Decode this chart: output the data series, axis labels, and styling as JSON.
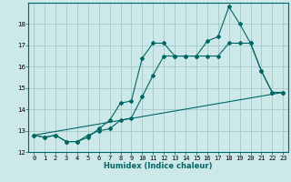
{
  "xlabel": "Humidex (Indice chaleur)",
  "bg_color": "#cce8e8",
  "line_color": "#006666",
  "grid_color": "#aacccc",
  "xlim": [
    -0.5,
    23.5
  ],
  "ylim": [
    12,
    19
  ],
  "yticks": [
    12,
    13,
    14,
    15,
    16,
    17,
    18
  ],
  "xtick_count": 24,
  "series1_x": [
    0,
    1,
    2,
    3,
    4,
    5,
    6,
    7,
    8,
    9,
    10,
    11,
    12,
    13,
    14,
    15,
    16,
    17,
    18,
    19,
    20,
    21,
    22,
    23
  ],
  "series1_y": [
    12.8,
    12.7,
    12.8,
    12.5,
    12.5,
    12.7,
    13.1,
    13.5,
    14.3,
    14.4,
    16.4,
    17.1,
    17.1,
    16.5,
    16.5,
    16.5,
    17.2,
    17.4,
    18.8,
    18.0,
    17.1,
    15.8,
    14.8,
    14.8
  ],
  "series2_x": [
    0,
    1,
    2,
    3,
    4,
    5,
    6,
    7,
    8,
    9,
    10,
    11,
    12,
    13,
    14,
    15,
    16,
    17,
    18,
    19,
    20,
    21,
    22,
    23
  ],
  "series2_y": [
    12.8,
    12.7,
    12.8,
    12.5,
    12.5,
    12.8,
    13.0,
    13.1,
    13.5,
    13.6,
    14.6,
    15.6,
    16.5,
    16.5,
    16.5,
    16.5,
    16.5,
    16.5,
    17.1,
    17.1,
    17.1,
    15.8,
    14.8,
    14.8
  ],
  "series3_x": [
    0,
    23
  ],
  "series3_y": [
    12.8,
    14.8
  ],
  "xlabel_fontsize": 6,
  "tick_fontsize": 5,
  "ylabel_fontsize": 6
}
